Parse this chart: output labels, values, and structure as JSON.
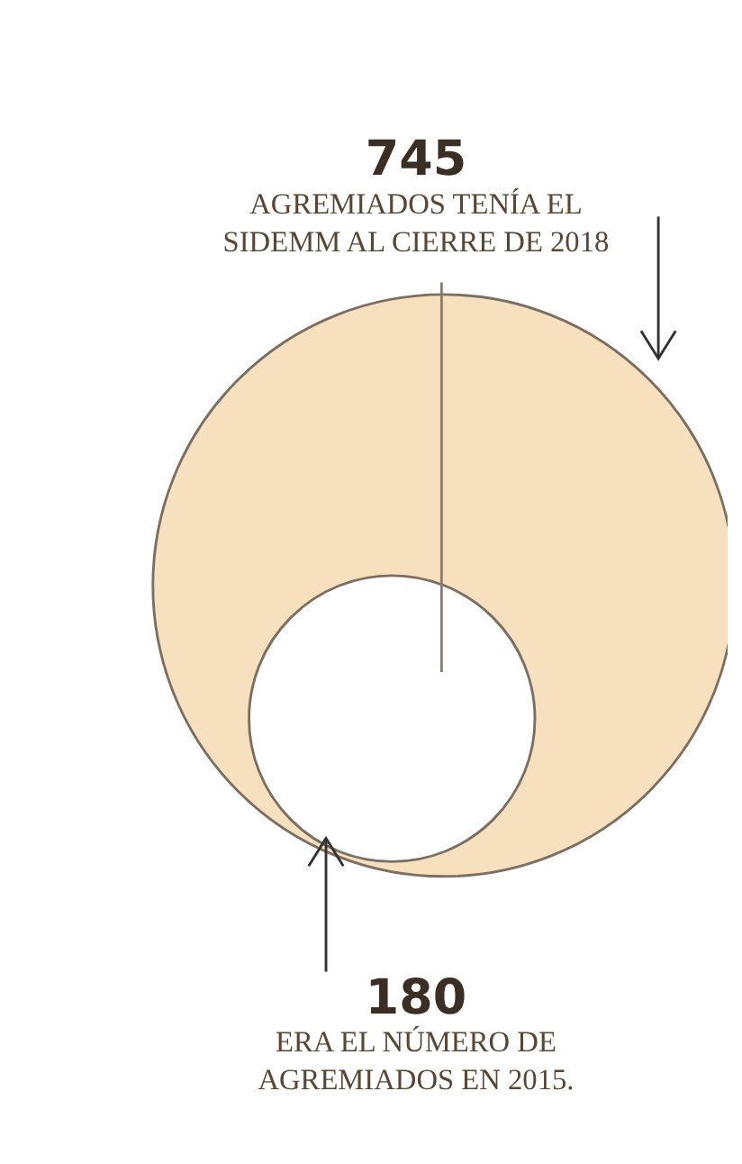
{
  "chart_data": {
    "type": "other",
    "categories": [
      "AGREMIADOS TENÍA EL SIDEMM AL CIERRE DE 2018",
      "ERA EL NÚMERO DE AGREMIADOS EN 2015."
    ],
    "values": [
      745,
      180
    ],
    "data_labels": true,
    "colors": [
      "#f6e0bd",
      "#ffffff"
    ]
  }
}
